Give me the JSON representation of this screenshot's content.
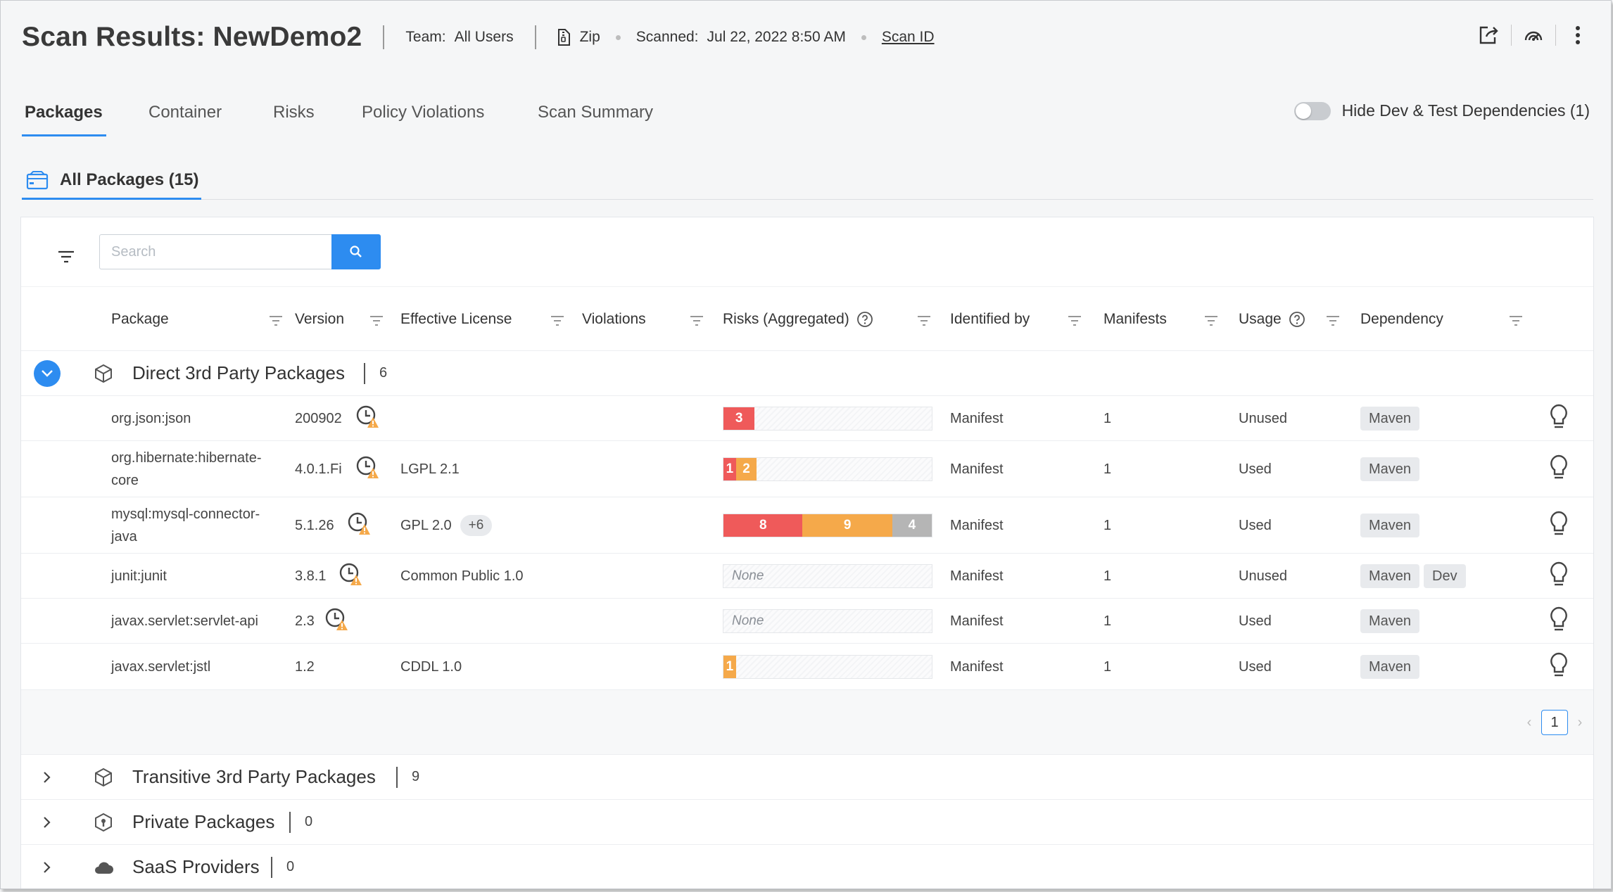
{
  "header": {
    "title": "Scan Results: NewDemo2",
    "team_label": "Team:",
    "team_value": "All Users",
    "source": "Zip",
    "scanned_label": "Scanned:",
    "scanned_value": "Jul 22, 2022 8:50 AM",
    "scan_id_link": "Scan ID",
    "icons": [
      "export-icon",
      "radar-icon",
      "more-vertical-icon"
    ]
  },
  "tabs": {
    "items": [
      "Packages",
      "Container",
      "Risks",
      "Policy Violations",
      "Scan Summary"
    ],
    "active": "Packages",
    "toggle_label": "Hide Dev & Test Dependencies (1)",
    "toggle_on": false
  },
  "subtab": {
    "label": "All Packages (15)"
  },
  "search": {
    "placeholder": "Search",
    "value": ""
  },
  "columns": [
    "Package",
    "Version",
    "Effective License",
    "Violations",
    "Risks (Aggregated)",
    "Identified by",
    "Manifests",
    "Usage",
    "Dependency"
  ],
  "groups": [
    {
      "name": "Direct 3rd Party Packages",
      "count": "6",
      "expanded": true
    },
    {
      "name": "Transitive 3rd Party Packages",
      "count": "9",
      "expanded": false
    },
    {
      "name": "Private Packages",
      "count": "0",
      "expanded": false
    },
    {
      "name": "SaaS Providers",
      "count": "0",
      "expanded": false
    }
  ],
  "rows": [
    {
      "package": "org.json:json",
      "version": "200902",
      "license": "",
      "license_extra": "",
      "risks": {
        "high": "3",
        "medium": "",
        "low": ""
      },
      "risk_fraction": {
        "high": 0.15,
        "medium": 0,
        "low": 0
      },
      "identified_by": "Manifest",
      "manifests": "1",
      "usage": "Unused",
      "dependency": [
        "Maven"
      ]
    },
    {
      "package": "org.hibernate:hibernate-core",
      "version": "4.0.1.Fi",
      "license": "LGPL 2.1",
      "license_extra": "",
      "risks": {
        "high": "1",
        "medium": "2",
        "low": ""
      },
      "risk_fraction": {
        "high": 0.06,
        "medium": 0.1,
        "low": 0
      },
      "identified_by": "Manifest",
      "manifests": "1",
      "usage": "Used",
      "dependency": [
        "Maven"
      ]
    },
    {
      "package": "mysql:mysql-connector-java",
      "version": "5.1.26",
      "license": "GPL 2.0",
      "license_extra": "+6",
      "risks": {
        "high": "8",
        "medium": "9",
        "low": "4"
      },
      "risk_fraction": {
        "high": 0.38,
        "medium": 0.43,
        "low": 0.19
      },
      "identified_by": "Manifest",
      "manifests": "1",
      "usage": "Used",
      "dependency": [
        "Maven"
      ]
    },
    {
      "package": "junit:junit",
      "version": "3.8.1",
      "license": "Common Public 1.0",
      "license_extra": "",
      "risks": {
        "none": "None"
      },
      "risk_fraction": {
        "high": 0,
        "medium": 0,
        "low": 0
      },
      "identified_by": "Manifest",
      "manifests": "1",
      "usage": "Unused",
      "dependency": [
        "Maven",
        "Dev"
      ]
    },
    {
      "package": "javax.servlet:servlet-api",
      "version": "2.3",
      "license": "",
      "license_extra": "",
      "risks": {
        "none": "None"
      },
      "risk_fraction": {
        "high": 0,
        "medium": 0,
        "low": 0
      },
      "identified_by": "Manifest",
      "manifests": "1",
      "usage": "Used",
      "dependency": [
        "Maven"
      ]
    },
    {
      "package": "javax.servlet:jstl",
      "version": "1.2",
      "license": "CDDL 1.0",
      "license_extra": "",
      "risks": {
        "high": "",
        "medium": "1",
        "low": ""
      },
      "risk_fraction": {
        "high": 0,
        "medium": 0.06,
        "low": 0
      },
      "identified_by": "Manifest",
      "manifests": "1",
      "usage": "Used",
      "dependency": [
        "Maven"
      ]
    }
  ],
  "pagination": {
    "current": "1",
    "prev": "‹",
    "next": "›"
  },
  "colors": {
    "accent": "#2d8cf0",
    "risk_high": "#ef5a5a",
    "risk_medium": "#f5a94a",
    "risk_low": "#b5b5b5"
  }
}
